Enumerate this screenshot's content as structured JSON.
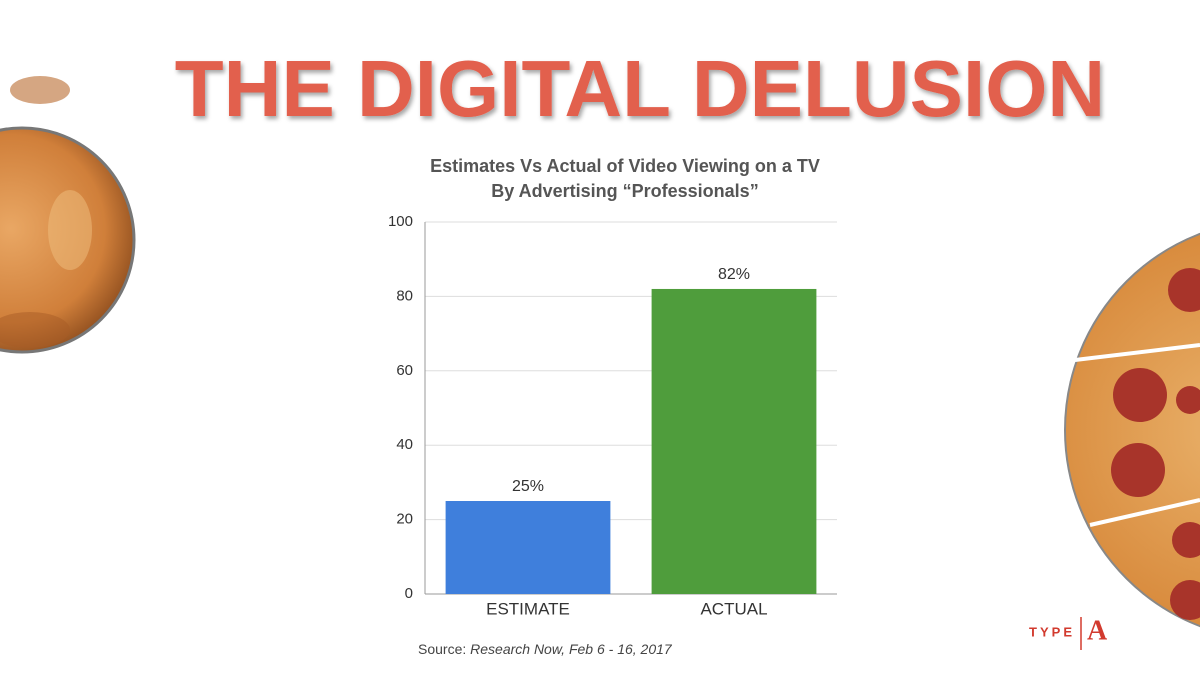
{
  "headline": "THE DIGITAL DELUSION",
  "chart_data": {
    "type": "bar",
    "title": [
      "Estimates Vs Actual of Video Viewing on a TV",
      "By Advertising “Professionals”"
    ],
    "categories": [
      "ESTIMATE",
      "ACTUAL"
    ],
    "values": [
      25,
      82
    ],
    "value_labels": [
      "25%",
      "82%"
    ],
    "colors": [
      "#3f7fdc",
      "#4f9d3c"
    ],
    "ylim": [
      0,
      100
    ],
    "yticks": [
      0,
      20,
      40,
      60,
      80,
      100
    ],
    "grid": true
  },
  "source": {
    "label": "Source:",
    "text": "Research Now, Feb 6 - 16, 2017"
  },
  "logo": {
    "left": "TYPE",
    "right": "A"
  }
}
